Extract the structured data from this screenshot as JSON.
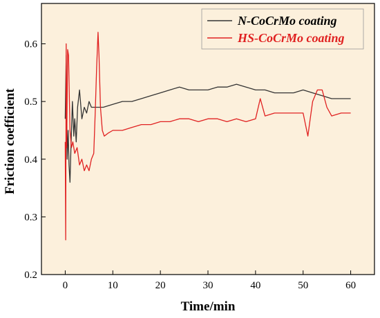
{
  "chart_data": {
    "type": "line",
    "title": "",
    "xlabel": "Time/min",
    "ylabel": "Friction coefficient",
    "xlim": [
      -5,
      65
    ],
    "ylim": [
      0.2,
      0.67
    ],
    "xticks": [
      0,
      10,
      20,
      30,
      40,
      50,
      60
    ],
    "yticks": [
      0.2,
      0.3,
      0.4,
      0.5,
      0.6
    ],
    "xtick_labels": [
      "0",
      "10",
      "20",
      "30",
      "40",
      "50",
      "60"
    ],
    "ytick_labels": [
      "0.2",
      "0.3",
      "0.4",
      "0.5",
      "0.6"
    ],
    "background_color": "#fcf0dc",
    "legend_position": "top-right",
    "grid": false,
    "series": [
      {
        "name": "N-CoCrMo coating",
        "color": "#333333",
        "x": [
          0,
          0.2,
          0.4,
          0.6,
          0.8,
          1.0,
          1.2,
          1.5,
          1.8,
          2.0,
          2.3,
          2.6,
          3.0,
          3.5,
          4.0,
          4.5,
          5.0,
          5.5,
          6.0,
          7.0,
          8.0,
          10.0,
          12.0,
          14.0,
          16.0,
          18.0,
          20.0,
          22.0,
          24.0,
          26.0,
          28.0,
          30.0,
          32.0,
          34.0,
          36.0,
          38.0,
          40.0,
          42.0,
          44.0,
          46.0,
          48.0,
          50.0,
          52.0,
          54.0,
          56.0,
          58.0,
          60.0
        ],
        "y": [
          0.47,
          0.58,
          0.4,
          0.45,
          0.39,
          0.36,
          0.42,
          0.5,
          0.44,
          0.47,
          0.43,
          0.49,
          0.52,
          0.47,
          0.49,
          0.48,
          0.5,
          0.49,
          0.49,
          0.49,
          0.49,
          0.495,
          0.5,
          0.5,
          0.505,
          0.51,
          0.515,
          0.52,
          0.525,
          0.52,
          0.52,
          0.52,
          0.525,
          0.525,
          0.53,
          0.525,
          0.52,
          0.52,
          0.515,
          0.515,
          0.515,
          0.52,
          0.515,
          0.51,
          0.505,
          0.505,
          0.505
        ]
      },
      {
        "name": "HS-CoCrMo coating",
        "color": "#e02020",
        "x": [
          0,
          0.1,
          0.2,
          0.3,
          0.5,
          0.7,
          1.0,
          1.3,
          1.6,
          2.0,
          2.5,
          3.0,
          3.5,
          4.0,
          4.5,
          5.0,
          5.5,
          6.0,
          6.3,
          6.6,
          6.9,
          7.1,
          7.4,
          7.8,
          8.2,
          9.0,
          10.0,
          12.0,
          14.0,
          16.0,
          18.0,
          20.0,
          22.0,
          24.0,
          26.0,
          28.0,
          30.0,
          32.0,
          34.0,
          36.0,
          38.0,
          40.0,
          41.0,
          42.0,
          44.0,
          46.0,
          48.0,
          50.0,
          51.0,
          51.5,
          52.0,
          53.0,
          54.0,
          55.0,
          56.0,
          58.0,
          60.0
        ],
        "y": [
          0.43,
          0.26,
          0.6,
          0.42,
          0.59,
          0.58,
          0.45,
          0.42,
          0.43,
          0.41,
          0.42,
          0.39,
          0.4,
          0.38,
          0.39,
          0.38,
          0.4,
          0.41,
          0.48,
          0.56,
          0.62,
          0.58,
          0.49,
          0.45,
          0.44,
          0.445,
          0.45,
          0.45,
          0.455,
          0.46,
          0.46,
          0.465,
          0.465,
          0.47,
          0.47,
          0.465,
          0.47,
          0.47,
          0.465,
          0.47,
          0.465,
          0.47,
          0.505,
          0.475,
          0.48,
          0.48,
          0.48,
          0.48,
          0.44,
          0.47,
          0.5,
          0.52,
          0.52,
          0.49,
          0.475,
          0.48,
          0.48
        ]
      }
    ]
  }
}
